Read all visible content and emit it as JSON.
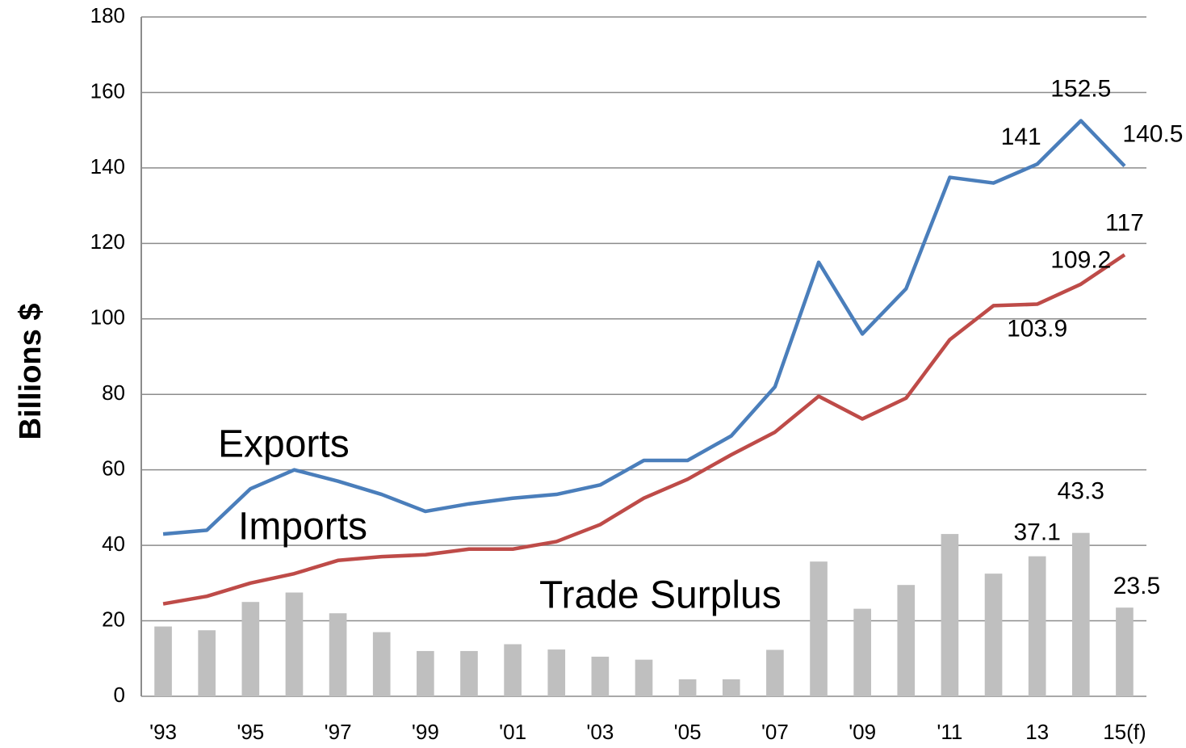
{
  "chart_data": {
    "type": "combo",
    "y_label": "Billions $",
    "categories": [
      "'93",
      null,
      "'95",
      null,
      "'97",
      null,
      "'99",
      null,
      "'01",
      null,
      "'03",
      null,
      "'05",
      null,
      "'07",
      null,
      "'09",
      null,
      "'11",
      null,
      "13",
      null,
      "15(f)"
    ],
    "series": [
      {
        "name": "Exports",
        "type": "line",
        "color": "#4a7ebb",
        "values": [
          43,
          44,
          55,
          60,
          57,
          53.5,
          49,
          51,
          52.5,
          53.5,
          56,
          62.5,
          62.5,
          69,
          82,
          115,
          96,
          108,
          137.5,
          136,
          141,
          152.5,
          140.5
        ]
      },
      {
        "name": "Imports",
        "type": "line",
        "color": "#be4b48",
        "values": [
          24.5,
          26.5,
          30,
          32.5,
          36,
          37,
          37.5,
          39,
          39,
          41,
          45.5,
          52.5,
          57.5,
          64,
          70,
          79.5,
          73.5,
          79,
          94.5,
          103.5,
          103.9,
          109.2,
          117
        ]
      },
      {
        "name": "Trade Surplus",
        "type": "bar",
        "color": "#bfbfbf",
        "values": [
          18.5,
          17.5,
          25,
          27.5,
          22,
          17,
          12,
          12,
          13.8,
          12.4,
          10.5,
          9.7,
          4.5,
          4.5,
          12.3,
          35.7,
          23.2,
          29.5,
          43,
          32.5,
          37.1,
          43.3,
          23.5
        ]
      }
    ],
    "data_labels_from_index": 20,
    "ylim": [
      0,
      180
    ],
    "yticks": [
      0,
      20,
      40,
      60,
      80,
      100,
      120,
      140,
      160,
      180
    ],
    "grid": true
  }
}
